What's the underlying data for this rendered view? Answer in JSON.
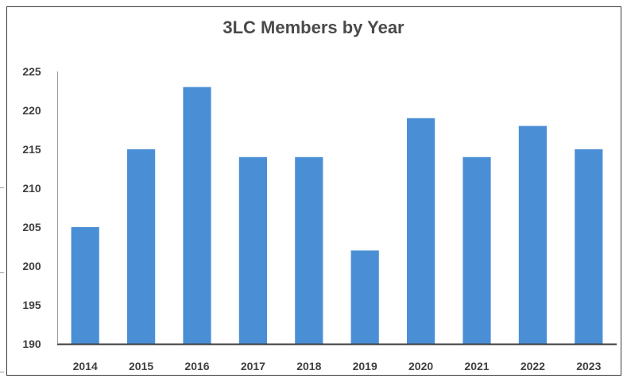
{
  "chart_data": {
    "type": "bar",
    "title": "3LC Members by Year",
    "xlabel": "",
    "ylabel": "",
    "categories": [
      "2014",
      "2015",
      "2016",
      "2017",
      "2018",
      "2019",
      "2020",
      "2021",
      "2022",
      "2023"
    ],
    "series": [
      {
        "values": [
          205,
          215,
          223,
          214,
          214,
          202,
          219,
          214,
          218,
          215
        ]
      }
    ],
    "ylim": [
      190,
      225
    ],
    "yticks": [
      190,
      195,
      200,
      205,
      210,
      215,
      220,
      225
    ],
    "grid": false,
    "legend": "none",
    "bar_color": "#4a8fd6",
    "axis_color": "#3c3c3c"
  }
}
